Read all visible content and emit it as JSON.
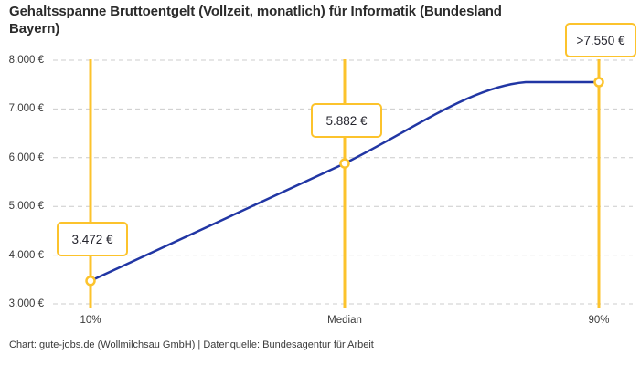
{
  "header": {
    "title_line1": "Gehaltsspanne Bruttoentgelt (Vollzeit, monatlich) für Informatik (Bundesland",
    "title_line2": "Bayern)"
  },
  "footer": {
    "text": "Chart: gute-jobs.de (Wollmilchsau GmbH) | Datenquelle: Bundesagentur für Arbeit"
  },
  "chart_data": {
    "type": "line",
    "title": "Gehaltsspanne Bruttoentgelt (Vollzeit, monatlich) für Informatik (Bundesland Bayern)",
    "categories": [
      "10%",
      "Median",
      "90%"
    ],
    "values": [
      3472,
      5882,
      7550
    ],
    "value_labels": [
      "3.472 €",
      "5.882 €",
      ">7.550 €"
    ],
    "ylim": [
      3000,
      8000
    ],
    "yticks": [
      3000,
      4000,
      5000,
      6000,
      7000,
      8000
    ],
    "ytick_labels": [
      "3.000 €",
      "4.000 €",
      "5.000 €",
      "6.000 €",
      "7.000 €",
      "8.000 €"
    ],
    "grid": "horizontal-dashed",
    "legend": "none",
    "colors": {
      "accent_yellow": "#fcc32c",
      "line_blue": "#2136a4",
      "grid_gray": "#cccccc",
      "marker_fill": "#ffffff"
    }
  }
}
